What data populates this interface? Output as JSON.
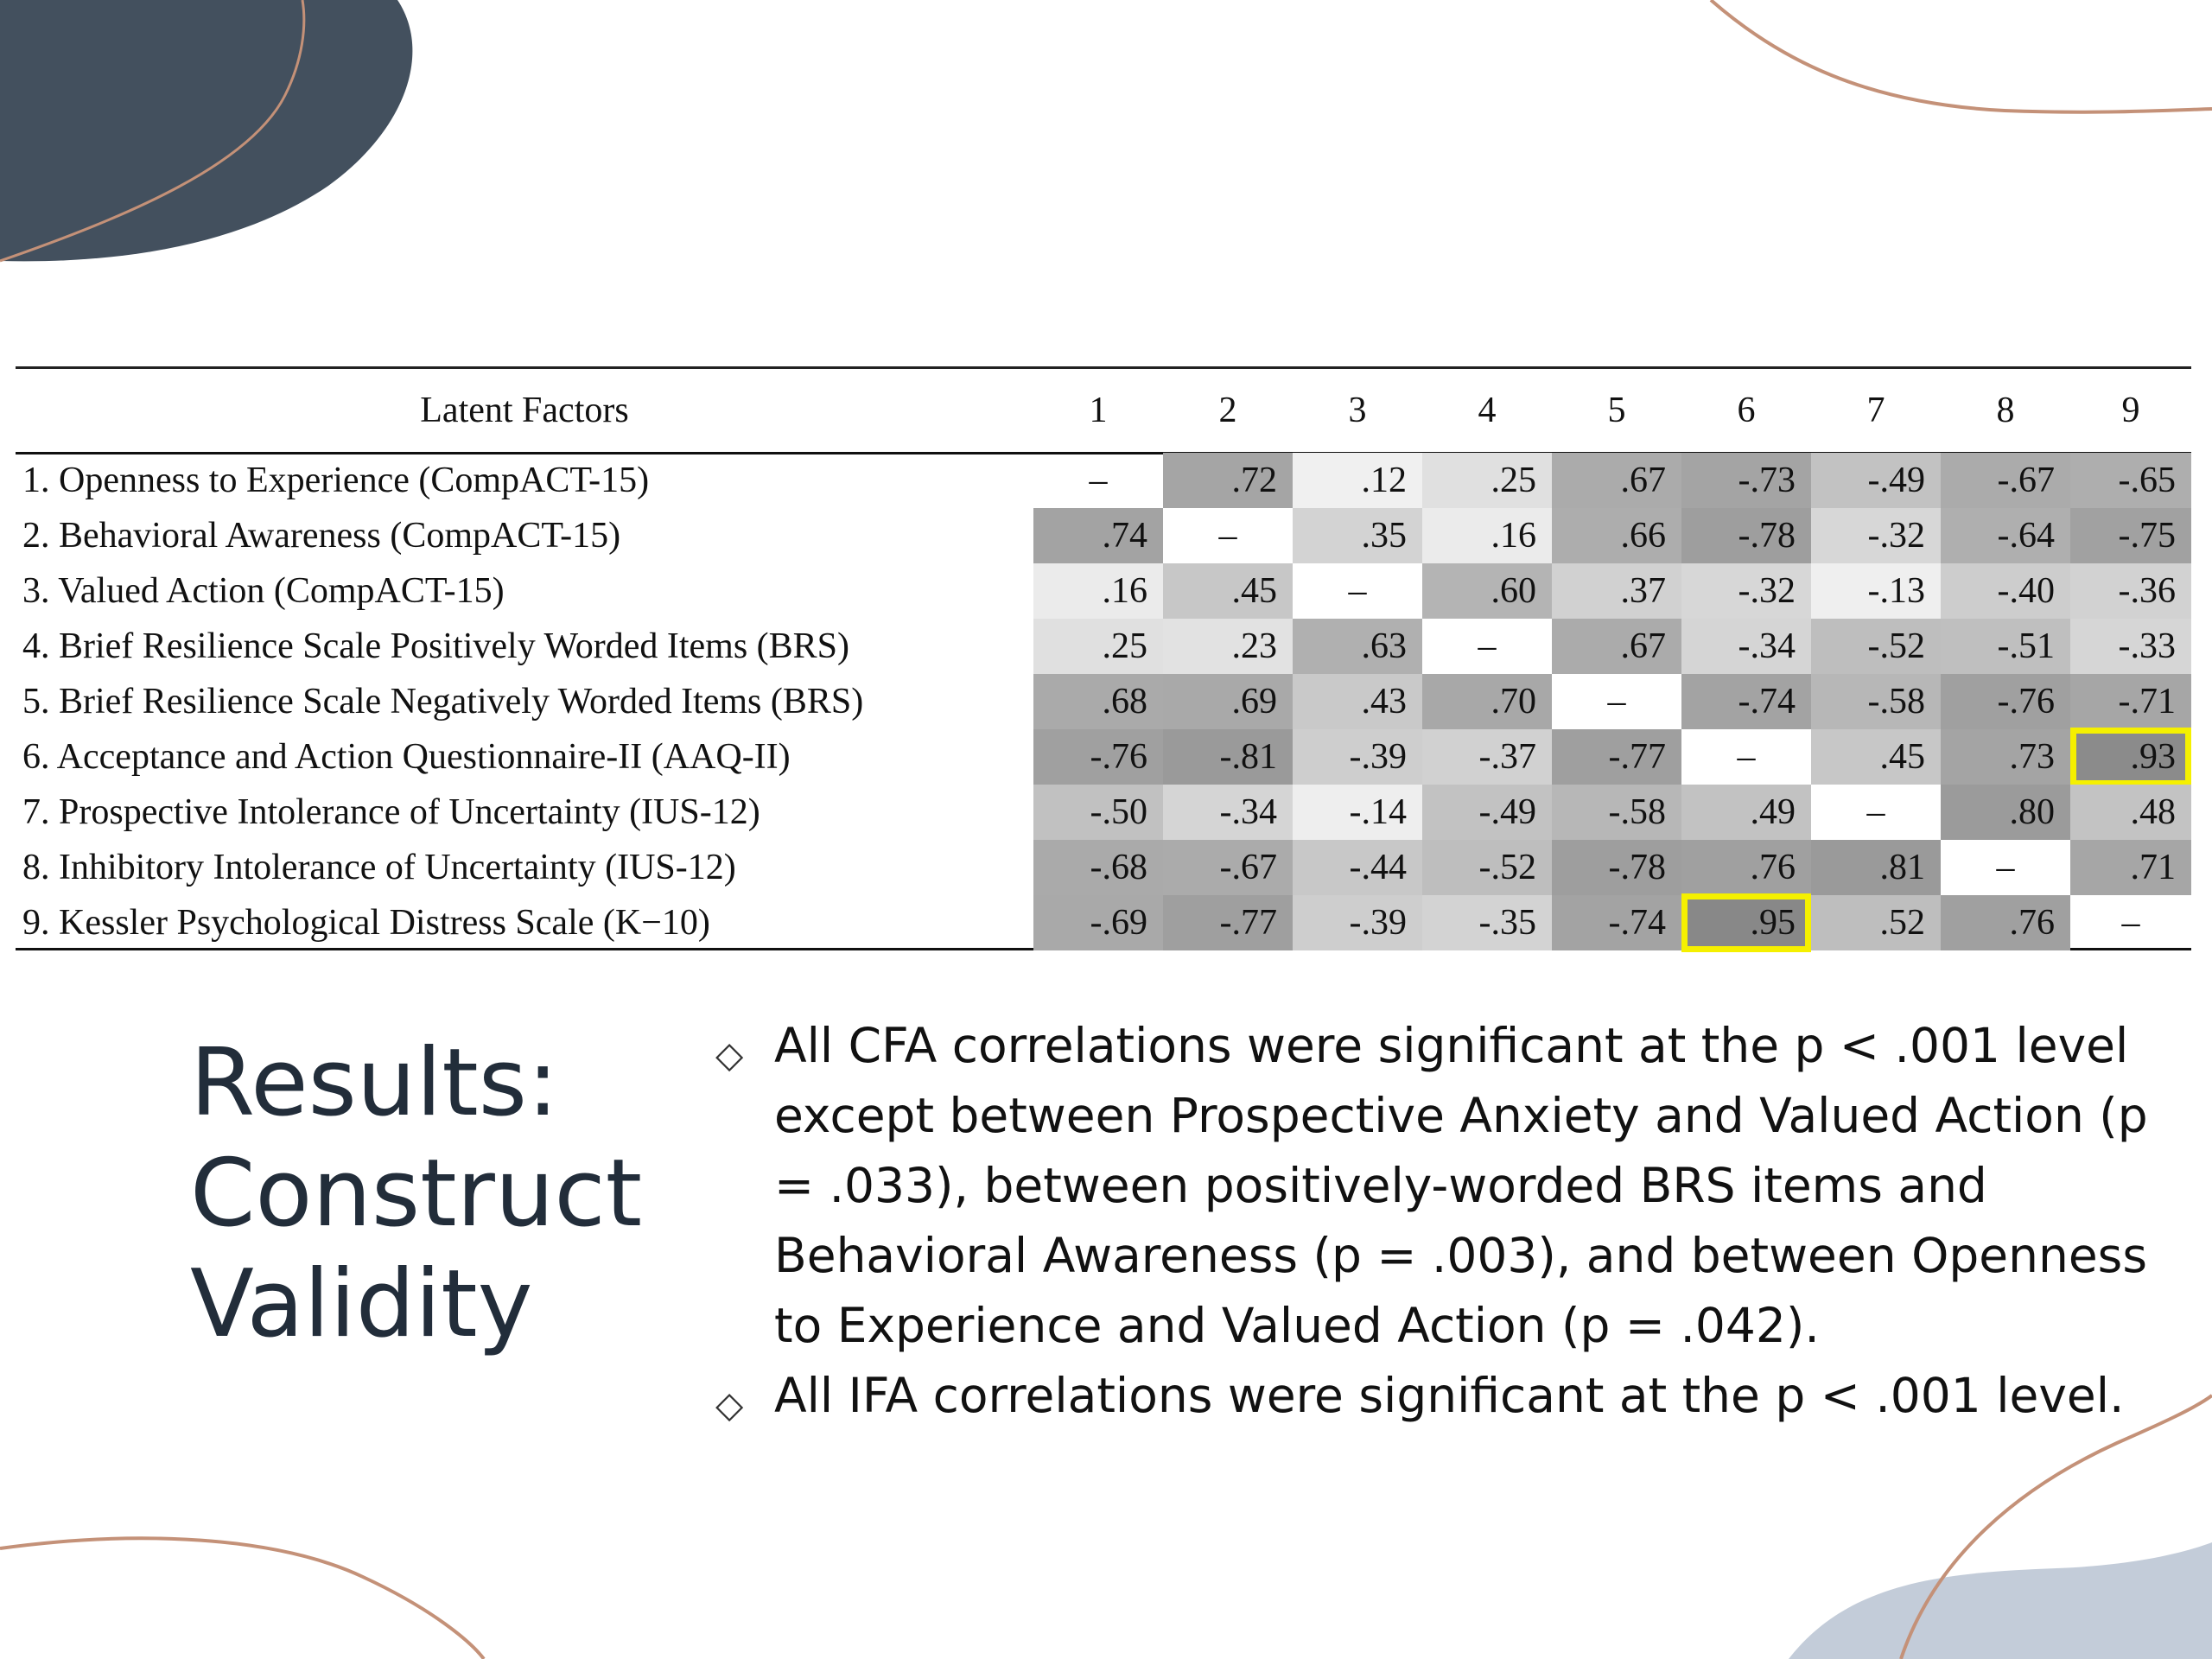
{
  "colors": {
    "dark_blob": "#43505e",
    "copper_line": "#c49178",
    "light_blob": "#c3ccd9",
    "highlight_box": "#f5f000",
    "title_text": "#222d3a"
  },
  "table": {
    "header_label": "Latent Factors",
    "column_headers": [
      "1",
      "2",
      "3",
      "4",
      "5",
      "6",
      "7",
      "8",
      "9"
    ],
    "rows": [
      {
        "label": "1. Openness to Experience (CompACT-15)",
        "values": [
          "–",
          ".72",
          ".12",
          ".25",
          ".67",
          "-.73",
          "-.49",
          "-.67",
          "-.65"
        ]
      },
      {
        "label": "2. Behavioral Awareness (CompACT-15)",
        "values": [
          ".74",
          "–",
          ".35",
          ".16",
          ".66",
          "-.78",
          "-.32",
          "-.64",
          "-.75"
        ]
      },
      {
        "label": "3. Valued Action (CompACT-15)",
        "values": [
          ".16",
          ".45",
          "–",
          ".60",
          ".37",
          "-.32",
          "-.13",
          "-.40",
          "-.36"
        ]
      },
      {
        "label": "4. Brief Resilience Scale Positively Worded Items (BRS)",
        "values": [
          ".25",
          ".23",
          ".63",
          "–",
          ".67",
          "-.34",
          "-.52",
          "-.51",
          "-.33"
        ]
      },
      {
        "label": "5. Brief Resilience Scale Negatively Worded Items (BRS)",
        "values": [
          ".68",
          ".69",
          ".43",
          ".70",
          "–",
          "-.74",
          "-.58",
          "-.76",
          "-.71"
        ]
      },
      {
        "label": "6. Acceptance and Action Questionnaire-II (AAQ-II)",
        "values": [
          "-.76",
          "-.81",
          "-.39",
          "-.37",
          "-.77",
          "–",
          ".45",
          ".73",
          ".93"
        ]
      },
      {
        "label": "7. Prospective Intolerance of Uncertainty (IUS-12)",
        "values": [
          "-.50",
          "-.34",
          "-.14",
          "-.49",
          "-.58",
          ".49",
          "–",
          ".80",
          ".48"
        ]
      },
      {
        "label": "8. Inhibitory Intolerance of Uncertainty (IUS-12)",
        "values": [
          "-.68",
          "-.67",
          "-.44",
          "-.52",
          "-.78",
          ".76",
          ".81",
          "–",
          ".71"
        ]
      },
      {
        "label": "9. Kessler Psychological Distress Scale (K−10)",
        "values": [
          "-.69",
          "-.77",
          "-.39",
          "-.35",
          "-.74",
          ".95",
          ".52",
          ".76",
          "–"
        ]
      }
    ],
    "highlighted_cells": [
      {
        "row": 6,
        "col": 9
      },
      {
        "row": 9,
        "col": 6
      }
    ]
  },
  "title": {
    "line1": "Results:",
    "line2": "Construct",
    "line3": "Validity"
  },
  "bullets": [
    {
      "icon": "diamond-bullet-icon",
      "text": "All CFA correlations were significant at the p < .001 level except between Prospective Anxiety and Valued Action (p = .033), between positively-worded BRS items and Behavioral Awareness (p = .003), and between Openness to Experience and Valued Action (p = .042)."
    },
    {
      "icon": "diamond-bullet-icon",
      "text": "All IFA correlations were significant at the p < .001 level."
    }
  ]
}
